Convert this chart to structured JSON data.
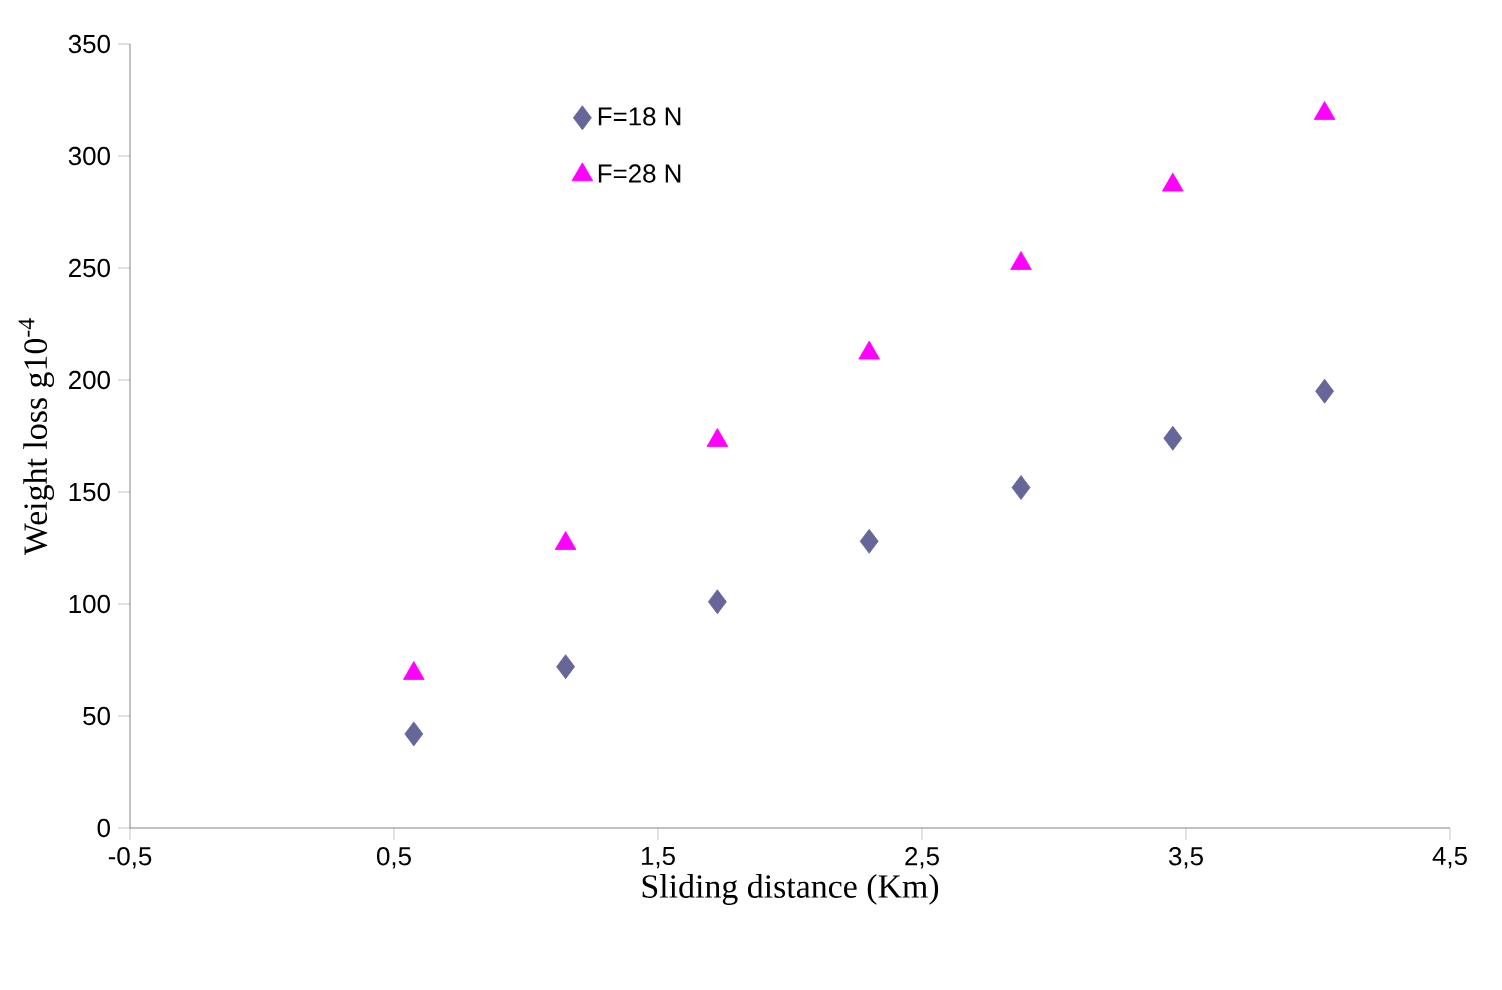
{
  "chart_data": {
    "type": "scatter",
    "xlabel": "Sliding distance (Km)",
    "ylabel": "Weight loss g10$^{-4}$",
    "xlim": [
      -0.5,
      4.5
    ],
    "ylim": [
      0,
      350
    ],
    "xticks": [
      {
        "value": -0.5,
        "label": "-0,5"
      },
      {
        "value": 0.5,
        "label": "0,5"
      },
      {
        "value": 1.5,
        "label": "1,5"
      },
      {
        "value": 2.5,
        "label": "2,5"
      },
      {
        "value": 3.5,
        "label": "3,5"
      },
      {
        "value": 4.5,
        "label": "4,5"
      }
    ],
    "yticks": [
      0,
      50,
      100,
      150,
      200,
      250,
      300,
      350
    ],
    "grid": false,
    "legend": "top left",
    "x": [
      0.575,
      1.15,
      1.725,
      2.3,
      2.875,
      3.45,
      4.025
    ],
    "series": [
      {
        "name": "F=18 N",
        "color": "#666699",
        "marker": "diamond",
        "values": [
          42,
          72,
          101,
          128,
          152,
          174,
          195
        ]
      },
      {
        "name": "F=28 N",
        "color": "#ff00ff",
        "marker": "triangle",
        "values": [
          69,
          127,
          173,
          212,
          252,
          287,
          319
        ]
      }
    ]
  }
}
